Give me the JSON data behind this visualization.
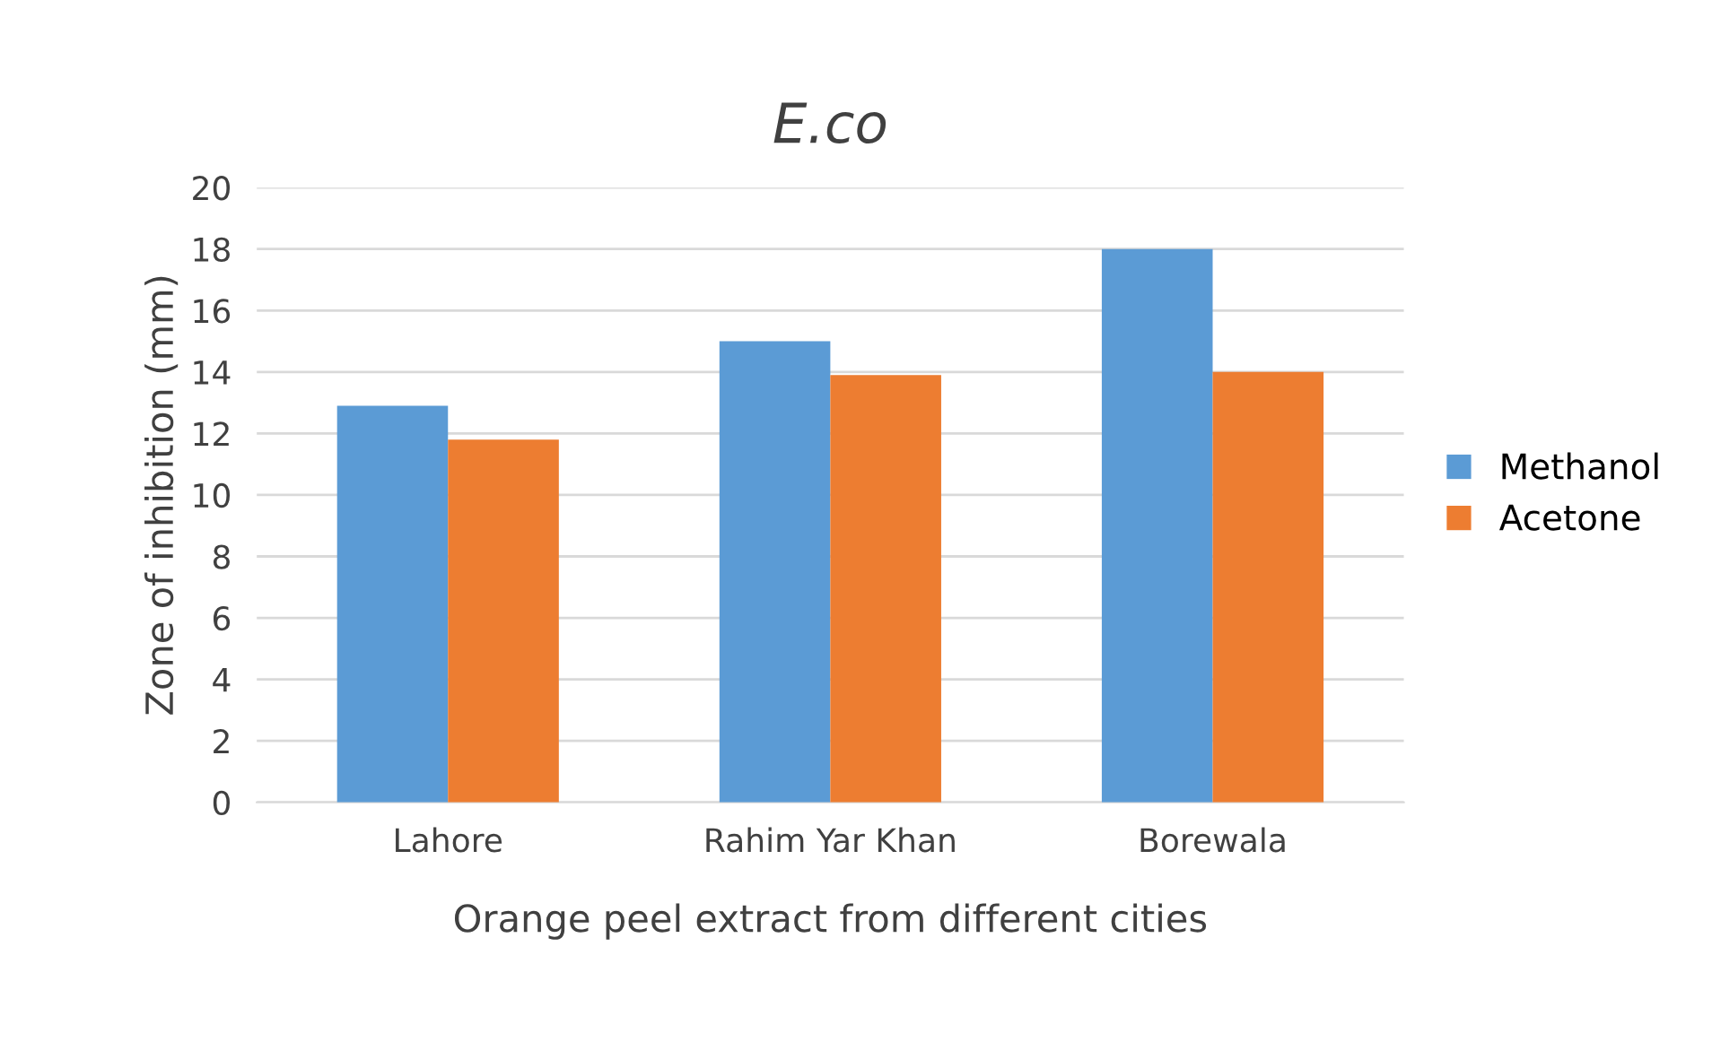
{
  "chart_data": {
    "type": "bar",
    "title": "E.co",
    "xlabel": "Orange peel extract from different cities",
    "ylabel": "Zone of inhibition (mm)",
    "categories": [
      "Lahore",
      "Rahim Yar Khan",
      "Borewala"
    ],
    "series": [
      {
        "name": "Methanol",
        "color": "#5b9bd5",
        "values": [
          12.9,
          15.0,
          18.0
        ]
      },
      {
        "name": "Acetone",
        "color": "#ed7d31",
        "values": [
          11.8,
          13.9,
          14.0
        ]
      }
    ],
    "ylim": [
      0,
      20
    ],
    "yticks": [
      0,
      2,
      4,
      6,
      8,
      10,
      12,
      14,
      16,
      18,
      20
    ],
    "grid": "y",
    "legend": "right"
  }
}
